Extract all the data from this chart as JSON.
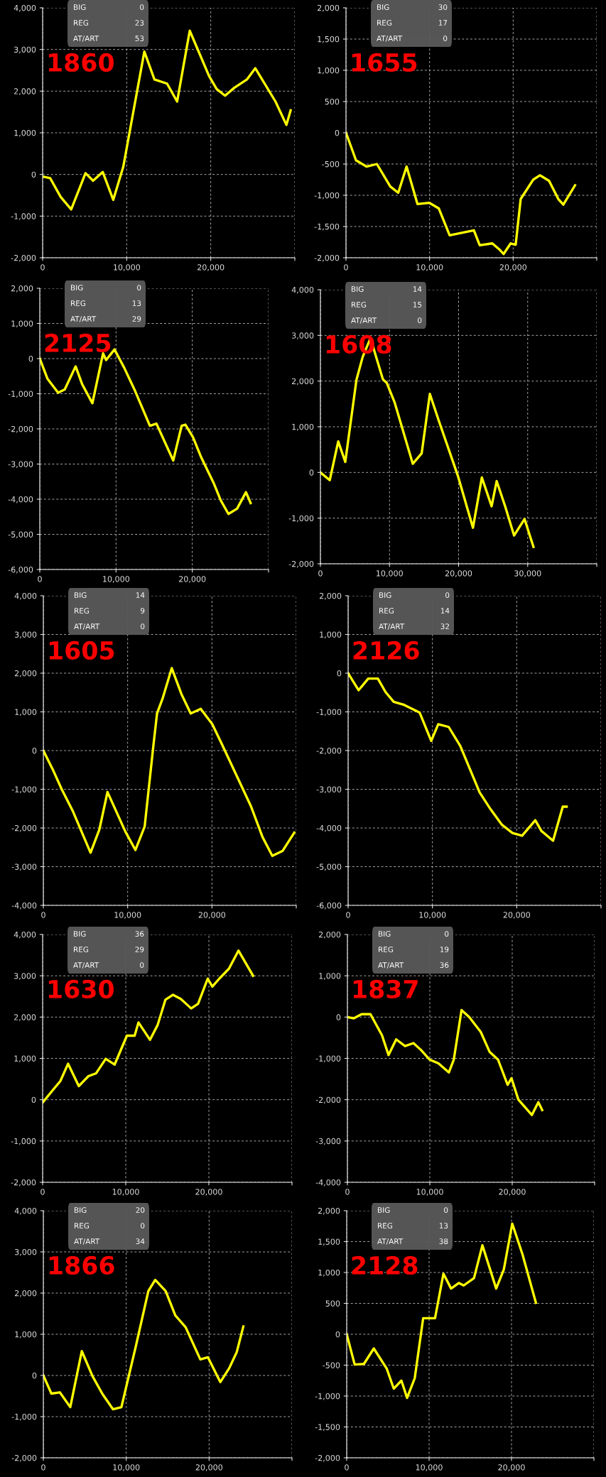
{
  "chart_data": [
    {
      "type": "line",
      "title": "1860",
      "annotations": [
        "BIG",
        "0",
        "REG",
        "23",
        "AT/ART",
        "53"
      ],
      "grid": true,
      "xlim": [
        0,
        30000
      ],
      "xticks": [
        0,
        {
          "value": 10000,
          "label": "10,000"
        },
        {
          "value": 20000,
          "label": "20,000"
        },
        {
          "value": 30000,
          "label": null
        }
      ],
      "ylim": [
        -2000,
        4000
      ],
      "yticks": [
        {
          "value": -2000,
          "label": "-2,000"
        },
        {
          "value": -1000,
          "label": "-1,000"
        },
        0,
        {
          "value": 1000,
          "label": "1,000"
        },
        {
          "value": 2000,
          "label": "2,000"
        },
        {
          "value": 3000,
          "label": "3,000"
        },
        {
          "value": 4000,
          "label": "4,000"
        }
      ],
      "series": [
        {
          "color": "#ffff00",
          "x": [
            0,
            900,
            2150,
            3400,
            5100,
            6000,
            7150,
            8400,
            9600,
            12100,
            13300,
            14800,
            16000,
            17500,
            19800,
            20700,
            21700,
            22800,
            24300,
            25300,
            27700,
            29000,
            29500
          ],
          "values": [
            -50,
            -90,
            -540,
            -840,
            30,
            -150,
            60,
            -610,
            190,
            2950,
            2280,
            2180,
            1750,
            3450,
            2360,
            2050,
            1890,
            2080,
            2280,
            2550,
            1750,
            1190,
            1540
          ]
        }
      ]
    },
    {
      "type": "line",
      "title": "1655",
      "annotations": [
        "BIG",
        "30",
        "REG",
        "17",
        "AT/ART",
        "0"
      ],
      "grid": true,
      "xlim": [
        0,
        30000
      ],
      "xticks": [
        0,
        {
          "value": 10000,
          "label": "10,000"
        },
        {
          "value": 20000,
          "label": "20,000"
        },
        {
          "value": 30000,
          "label": null
        }
      ],
      "ylim": [
        -2000,
        2000
      ],
      "yticks": [
        {
          "value": -2000,
          "label": "-2,000"
        },
        {
          "value": -1500,
          "label": "-1,500"
        },
        {
          "value": -1000,
          "label": "-1,000"
        },
        -500,
        0,
        500,
        {
          "value": 1000,
          "label": "1,000"
        },
        {
          "value": 1500,
          "label": "1,500"
        },
        {
          "value": 2000,
          "label": "2,000"
        }
      ],
      "series": [
        {
          "color": "#ffff00",
          "x": [
            0,
            1200,
            2450,
            3700,
            5300,
            6250,
            7250,
            8550,
            9950,
            11100,
            12400,
            15300,
            16000,
            17500,
            18300,
            18850,
            19700,
            20300,
            20900,
            22400,
            23200,
            24300,
            25400,
            26000,
            27400
          ],
          "values": [
            0,
            -440,
            -540,
            -500,
            -860,
            -960,
            -540,
            -1140,
            -1120,
            -1210,
            -1640,
            -1560,
            -1800,
            -1770,
            -1860,
            -1940,
            -1770,
            -1790,
            -1060,
            -750,
            -680,
            -770,
            -1060,
            -1150,
            -840
          ]
        }
      ]
    },
    {
      "type": "line",
      "title": "2125",
      "annotations": [
        "BIG",
        "0",
        "REG",
        "13",
        "AT/ART",
        "29"
      ],
      "grid": true,
      "xlim": [
        0,
        30000
      ],
      "xticks": [
        0,
        {
          "value": 10000,
          "label": "10,000"
        },
        {
          "value": 20000,
          "label": "20,000"
        },
        {
          "value": 30000,
          "label": null
        }
      ],
      "ylim": [
        -6000,
        2000
      ],
      "yticks": [
        {
          "value": -6000,
          "label": "-6,000"
        },
        {
          "value": -5000,
          "label": "-5,000"
        },
        {
          "value": -4000,
          "label": "-4,000"
        },
        {
          "value": -3000,
          "label": "-3,000"
        },
        {
          "value": -2000,
          "label": "-2,000"
        },
        {
          "value": -1000,
          "label": "-1,000"
        },
        0,
        {
          "value": 1000,
          "label": "1,000"
        },
        {
          "value": 2000,
          "label": "2,000"
        }
      ],
      "series": [
        {
          "color": "#ffff00",
          "x": [
            0,
            1000,
            2400,
            3270,
            4700,
            5560,
            6900,
            8300,
            8700,
            9800,
            11070,
            12500,
            14440,
            15300,
            17500,
            18600,
            19100,
            20100,
            21170,
            22800,
            23700,
            24740,
            25870,
            27040,
            27650
          ],
          "values": [
            0,
            -570,
            -970,
            -880,
            -220,
            -730,
            -1270,
            150,
            -40,
            260,
            -260,
            -920,
            -1910,
            -1850,
            -2900,
            -1910,
            -1880,
            -2240,
            -2810,
            -3540,
            -4020,
            -4420,
            -4270,
            -3800,
            -4110
          ]
        }
      ]
    },
    {
      "type": "line",
      "title": "1608",
      "annotations": [
        "BIG",
        "14",
        "REG",
        "15",
        "AT/ART",
        "0"
      ],
      "grid": true,
      "xlim": [
        0,
        40000
      ],
      "xticks": [
        0,
        {
          "value": 10000,
          "label": "10,000"
        },
        {
          "value": 20000,
          "label": "20,000"
        },
        {
          "value": 30000,
          "label": "30,000"
        },
        {
          "value": 40000,
          "label": null
        }
      ],
      "ylim": [
        -2000,
        4000
      ],
      "yticks": [
        {
          "value": -2000,
          "label": "-2,000"
        },
        {
          "value": -1000,
          "label": "-1,000"
        },
        0,
        {
          "value": 1000,
          "label": "1,000"
        },
        {
          "value": 2000,
          "label": "2,000"
        },
        {
          "value": 3000,
          "label": "3,000"
        },
        {
          "value": 4000,
          "label": "4,000"
        }
      ],
      "series": [
        {
          "color": "#ffff00",
          "x": [
            0,
            1350,
            2580,
            3600,
            5220,
            6120,
            7250,
            9040,
            9600,
            10730,
            13370,
            14660,
            15840,
            17190,
            19890,
            22080,
            23370,
            24780,
            25510,
            26740,
            28030,
            29550,
            30840
          ],
          "values": [
            0,
            -170,
            680,
            230,
            2030,
            2530,
            2940,
            2040,
            1960,
            1540,
            190,
            420,
            1720,
            1110,
            -70,
            -1210,
            -110,
            -740,
            -190,
            -740,
            -1380,
            -1020,
            -1630
          ]
        }
      ]
    },
    {
      "type": "line",
      "title": "1605",
      "annotations": [
        "BIG",
        "14",
        "REG",
        "9",
        "AT/ART",
        "0"
      ],
      "grid": true,
      "xlim": [
        0,
        30000
      ],
      "xticks": [
        0,
        {
          "value": 10000,
          "label": "10,000"
        },
        {
          "value": 20000,
          "label": "20,000"
        },
        {
          "value": 30000,
          "label": null
        }
      ],
      "ylim": [
        -4000,
        4000
      ],
      "yticks": [
        {
          "value": -4000,
          "label": "-4,000"
        },
        {
          "value": -3000,
          "label": "-3,000"
        },
        {
          "value": -2000,
          "label": "-2,000"
        },
        {
          "value": -1000,
          "label": "-1,000"
        },
        0,
        {
          "value": 1000,
          "label": "1,000"
        },
        {
          "value": 2000,
          "label": "2,000"
        },
        {
          "value": 3000,
          "label": "3,000"
        },
        {
          "value": 4000,
          "label": "4,000"
        }
      ],
      "series": [
        {
          "color": "#ffff00",
          "x": [
            0,
            1100,
            2160,
            3530,
            5600,
            6650,
            7610,
            8580,
            9720,
            10920,
            12020,
            13070,
            13490,
            14170,
            15230,
            16380,
            17480,
            18670,
            20050,
            21150,
            24630,
            26010,
            27160,
            28390,
            29770
          ],
          "values": [
            0,
            -480,
            -990,
            -1580,
            -2640,
            -2040,
            -1070,
            -1540,
            -2090,
            -2570,
            -1960,
            160,
            960,
            1360,
            2130,
            1460,
            960,
            1080,
            680,
            180,
            -1440,
            -2240,
            -2720,
            -2590,
            -2120
          ]
        }
      ]
    },
    {
      "type": "line",
      "title": "2126",
      "annotations": [
        "BIG",
        "0",
        "REG",
        "14",
        "AT/ART",
        "32"
      ],
      "grid": true,
      "xlim": [
        0,
        30000
      ],
      "xticks": [
        0,
        {
          "value": 10000,
          "label": "10,000"
        },
        {
          "value": 20000,
          "label": "20,000"
        },
        {
          "value": 30000,
          "label": null
        }
      ],
      "ylim": [
        -6000,
        2000
      ],
      "yticks": [
        {
          "value": -6000,
          "label": "-6,000"
        },
        {
          "value": -5000,
          "label": "-5,000"
        },
        {
          "value": -4000,
          "label": "-4,000"
        },
        {
          "value": -3000,
          "label": "-3,000"
        },
        {
          "value": -2000,
          "label": "-2,000"
        },
        {
          "value": -1000,
          "label": "-1,000"
        },
        0,
        {
          "value": 1000,
          "label": "1,000"
        },
        {
          "value": 2000,
          "label": "2,000"
        }
      ],
      "series": [
        {
          "color": "#ffff00",
          "x": [
            0,
            1240,
            2390,
            3530,
            4450,
            5410,
            6650,
            8490,
            9860,
            10690,
            11930,
            13300,
            14450,
            15600,
            16880,
            18210,
            19500,
            20640,
            22200,
            22940,
            24310,
            25460,
            25920
          ],
          "values": [
            0,
            -440,
            -140,
            -140,
            -490,
            -740,
            -820,
            -1020,
            -1750,
            -1320,
            -1390,
            -1880,
            -2480,
            -3080,
            -3510,
            -3910,
            -4130,
            -4200,
            -3800,
            -4080,
            -4330,
            -3450,
            -3450
          ]
        }
      ]
    },
    {
      "type": "line",
      "title": "1630",
      "annotations": [
        "BIG",
        "36",
        "REG",
        "29",
        "AT/ART",
        "0"
      ],
      "grid": true,
      "xlim": [
        0,
        30000
      ],
      "xticks": [
        0,
        {
          "value": 10000,
          "label": "10,000"
        },
        {
          "value": 20000,
          "label": "20,000"
        },
        {
          "value": 30000,
          "label": null
        }
      ],
      "ylim": [
        -2000,
        4000
      ],
      "yticks": [
        {
          "value": -2000,
          "label": "-2,000"
        },
        {
          "value": -1000,
          "label": "-1,000"
        },
        0,
        {
          "value": 1000,
          "label": "1,000"
        },
        {
          "value": 2000,
          "label": "2,000"
        },
        {
          "value": 3000,
          "label": "3,000"
        },
        {
          "value": 4000,
          "label": "4,000"
        }
      ],
      "series": [
        {
          "color": "#ffff00",
          "x": [
            0,
            1340,
            2130,
            3060,
            4350,
            5510,
            6440,
            7590,
            8660,
            10140,
            11070,
            11530,
            12920,
            13840,
            14770,
            15690,
            16620,
            17870,
            18700,
            19860,
            20420,
            21250,
            22410,
            23560,
            25320
          ],
          "values": [
            -70,
            260,
            450,
            870,
            330,
            570,
            640,
            990,
            850,
            1550,
            1550,
            1870,
            1450,
            1810,
            2420,
            2540,
            2440,
            2210,
            2320,
            2930,
            2740,
            2930,
            3170,
            3610,
            3000
          ]
        }
      ]
    },
    {
      "type": "line",
      "title": "1837",
      "annotations": [
        "BIG",
        "0",
        "REG",
        "19",
        "AT/ART",
        "36"
      ],
      "grid": true,
      "xlim": [
        0,
        30000
      ],
      "xticks": [
        0,
        {
          "value": 10000,
          "label": "10,000"
        },
        {
          "value": 20000,
          "label": "20,000"
        },
        {
          "value": 30000,
          "label": null
        }
      ],
      "ylim": [
        -4000,
        2000
      ],
      "yticks": [
        {
          "value": -4000,
          "label": "-4,000"
        },
        {
          "value": -3000,
          "label": "-3,000"
        },
        {
          "value": -2000,
          "label": "-2,000"
        },
        {
          "value": -1000,
          "label": "-1,000"
        },
        0,
        {
          "value": 1000,
          "label": "1,000"
        },
        {
          "value": 2000,
          "label": "2,000"
        }
      ],
      "series": [
        {
          "color": "#ffff00",
          "x": [
            0,
            790,
            1720,
            2800,
            4200,
            4990,
            5920,
            6990,
            8020,
            8950,
            9980,
            11050,
            12310,
            12910,
            13850,
            14780,
            16180,
            17250,
            18280,
            19440,
            19910,
            20750,
            22380,
            23170,
            23640
          ],
          "values": [
            0,
            -30,
            70,
            70,
            -440,
            -920,
            -540,
            -700,
            -630,
            -800,
            -1030,
            -1120,
            -1340,
            -1030,
            170,
            0,
            -360,
            -840,
            -1030,
            -1640,
            -1480,
            -2000,
            -2370,
            -2060,
            -2250
          ]
        }
      ]
    },
    {
      "type": "line",
      "title": "1866",
      "annotations": [
        "BIG",
        "20",
        "REG",
        "0",
        "AT/ART",
        "34"
      ],
      "grid": true,
      "xlim": [
        0,
        30000
      ],
      "xticks": [
        0,
        {
          "value": 10000,
          "label": "10,000"
        },
        {
          "value": 20000,
          "label": "20,000"
        },
        {
          "value": 30000,
          "label": null
        }
      ],
      "ylim": [
        -2000,
        4000
      ],
      "yticks": [
        {
          "value": -2000,
          "label": "-2,000"
        },
        {
          "value": -1000,
          "label": "-1,000"
        },
        0,
        {
          "value": 1000,
          "label": "1,000"
        },
        {
          "value": 2000,
          "label": "2,000"
        },
        {
          "value": 3000,
          "label": "3,000"
        },
        {
          "value": 4000,
          "label": "4,000"
        }
      ],
      "series": [
        {
          "color": "#ffff00",
          "x": [
            0,
            970,
            1990,
            3250,
            4640,
            5940,
            7100,
            8400,
            9420,
            11140,
            12670,
            13500,
            14760,
            15920,
            17170,
            18940,
            19860,
            21350,
            22410,
            23340,
            24130
          ],
          "values": [
            0,
            -440,
            -410,
            -770,
            590,
            -20,
            -440,
            -820,
            -770,
            690,
            2050,
            2320,
            2050,
            1460,
            1170,
            390,
            440,
            -160,
            170,
            570,
            1190
          ]
        }
      ]
    },
    {
      "type": "line",
      "title": "2128",
      "annotations": [
        "BIG",
        "0",
        "REG",
        "13",
        "AT/ART",
        "38"
      ],
      "grid": true,
      "xlim": [
        0,
        30000
      ],
      "xticks": [
        0,
        {
          "value": 10000,
          "label": "10,000"
        },
        {
          "value": 20000,
          "label": "20,000"
        },
        {
          "value": 30000,
          "label": null
        }
      ],
      "ylim": [
        -2000,
        2000
      ],
      "yticks": [
        {
          "value": -2000,
          "label": "-2,000"
        },
        {
          "value": -1500,
          "label": "-1,500"
        },
        {
          "value": -1000,
          "label": "-1,000"
        },
        -500,
        0,
        500,
        {
          "value": 1000,
          "label": "1,000"
        },
        {
          "value": 1500,
          "label": "1,500"
        },
        {
          "value": 2000,
          "label": "2,000"
        }
      ],
      "series": [
        {
          "color": "#ffff00",
          "x": [
            0,
            970,
            2090,
            3290,
            4870,
            5710,
            6640,
            7330,
            8260,
            9280,
            10720,
            11740,
            12670,
            13600,
            14200,
            15450,
            16470,
            18140,
            19070,
            20090,
            21340,
            22960
          ],
          "values": [
            0,
            -490,
            -480,
            -230,
            -560,
            -880,
            -750,
            -1030,
            -710,
            260,
            260,
            980,
            740,
            830,
            790,
            910,
            1440,
            740,
            1050,
            1790,
            1290,
            510
          ]
        }
      ]
    }
  ]
}
